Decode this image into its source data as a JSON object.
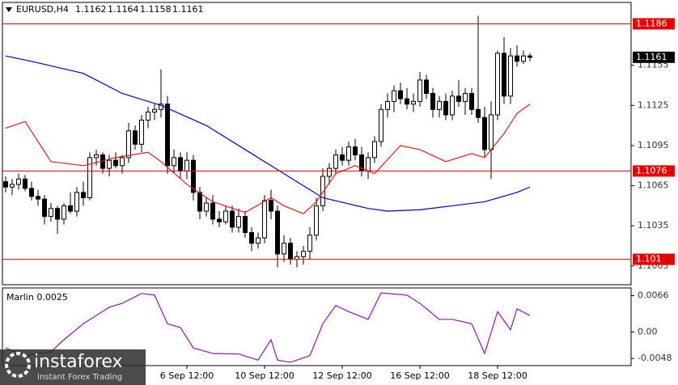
{
  "chart_data": [
    {
      "type": "candlestick",
      "symbol": "EURUSD,H4",
      "categories": [
        null,
        null,
        null,
        null,
        null,
        null,
        null,
        null,
        null,
        null,
        null,
        null,
        null,
        null,
        null,
        null,
        null,
        null,
        null,
        null,
        null,
        null,
        null,
        null,
        null,
        null,
        null,
        null,
        "6 Sep 12:00",
        null,
        null,
        null,
        null,
        null,
        null,
        null,
        null,
        null,
        null,
        null,
        "10 Sep 12:00",
        null,
        null,
        null,
        null,
        null,
        null,
        null,
        null,
        null,
        null,
        null,
        "12 Sep 12:00",
        null,
        null,
        null,
        null,
        null,
        null,
        null,
        null,
        null,
        null,
        null,
        "16 Sep 12:00",
        null,
        null,
        null,
        null,
        null,
        null,
        null,
        null,
        null,
        null,
        null,
        "18 Sep 12:00",
        null,
        null,
        null,
        null,
        null
      ],
      "open": [
        1.1068,
        1.1064,
        1.1066,
        1.107,
        1.1063,
        1.1057,
        1.1055,
        1.1042,
        1.1048,
        1.104,
        1.105,
        1.1046,
        1.106,
        1.1056,
        1.1086,
        1.1088,
        1.1078,
        1.1084,
        1.108,
        1.1086,
        1.1106,
        1.1096,
        1.1114,
        1.112,
        1.1122,
        1.1126,
        1.108,
        1.1086,
        1.1076,
        1.1084,
        1.106,
        1.1046,
        1.1052,
        1.104,
        1.1038,
        1.1046,
        1.1034,
        1.1042,
        1.103,
        1.1022,
        1.1026,
        1.1054,
        1.1046,
        1.1014,
        1.1022,
        1.101,
        1.1012,
        1.1016,
        1.1028,
        1.105,
        1.1072,
        1.1078,
        1.1088,
        1.1084,
        1.1094,
        1.1088,
        1.1076,
        1.1086,
        1.1098,
        1.1122,
        1.1128,
        1.1136,
        1.113,
        1.1126,
        1.1128,
        1.1144,
        1.1134,
        1.1122,
        1.1128,
        1.1118,
        1.1132,
        1.1128,
        1.1134,
        1.1122,
        1.1116,
        1.1092,
        1.1118,
        1.1164,
        1.1132,
        1.1162,
        1.1158,
        1.1162
      ],
      "high": [
        1.1072,
        1.107,
        1.1074,
        1.1073,
        1.1068,
        1.1062,
        1.1058,
        1.1052,
        1.105,
        1.1052,
        1.106,
        1.1064,
        1.1068,
        1.109,
        1.1092,
        1.109,
        1.1088,
        1.109,
        1.1088,
        1.1112,
        1.111,
        1.1118,
        1.1124,
        1.1126,
        1.1152,
        1.1132,
        1.1092,
        1.109,
        1.109,
        1.1088,
        1.1064,
        1.1056,
        1.1058,
        1.1046,
        1.105,
        1.105,
        1.1048,
        1.1046,
        1.1034,
        1.103,
        1.1058,
        1.1062,
        1.105,
        1.1028,
        1.1026,
        1.1016,
        1.102,
        1.1034,
        1.1056,
        1.1078,
        1.1082,
        1.1092,
        1.1094,
        1.1098,
        1.11,
        1.1094,
        1.109,
        1.1102,
        1.1126,
        1.1134,
        1.114,
        1.1142,
        1.1138,
        1.1134,
        1.115,
        1.1148,
        1.1138,
        1.1132,
        1.1134,
        1.1136,
        1.1144,
        1.1138,
        1.1138,
        1.1192,
        1.1124,
        1.1128,
        1.1166,
        1.1176,
        1.1168,
        1.117,
        1.1166,
        1.1164
      ],
      "low": [
        1.106,
        1.1058,
        1.1062,
        1.1061,
        1.1054,
        1.105,
        1.1036,
        1.1038,
        1.1029,
        1.1036,
        1.1044,
        1.1042,
        1.105,
        1.1054,
        1.108,
        1.1074,
        1.1072,
        1.1078,
        1.1074,
        1.1082,
        1.1092,
        1.109,
        1.1108,
        1.1114,
        1.1116,
        1.1074,
        1.1074,
        1.107,
        1.107,
        1.1054,
        1.104,
        1.1042,
        1.1036,
        1.1034,
        1.1036,
        1.103,
        1.103,
        1.1026,
        1.1016,
        1.1018,
        1.1022,
        1.104,
        1.1004,
        1.1008,
        1.1006,
        1.1004,
        1.1006,
        1.101,
        1.1024,
        1.1046,
        1.1066,
        1.1074,
        1.108,
        1.108,
        1.1084,
        1.1072,
        1.107,
        1.1082,
        1.1094,
        1.1116,
        1.112,
        1.1126,
        1.1122,
        1.112,
        1.1124,
        1.113,
        1.1116,
        1.1116,
        1.1114,
        1.1114,
        1.1124,
        1.1118,
        1.1118,
        1.1112,
        1.1086,
        1.107,
        1.1114,
        1.1126,
        1.1126,
        1.1154,
        1.1156,
        1.1158
      ],
      "close": [
        1.1064,
        1.1066,
        1.107,
        1.1063,
        1.1057,
        1.1055,
        1.1042,
        1.1048,
        1.104,
        1.105,
        1.1046,
        1.106,
        1.1056,
        1.1086,
        1.1088,
        1.1078,
        1.1084,
        1.108,
        1.1086,
        1.1106,
        1.1096,
        1.1114,
        1.112,
        1.1122,
        1.1126,
        1.108,
        1.1086,
        1.1076,
        1.1084,
        1.106,
        1.1046,
        1.1052,
        1.104,
        1.1038,
        1.1046,
        1.1034,
        1.1042,
        1.103,
        1.1022,
        1.1026,
        1.1054,
        1.1046,
        1.1014,
        1.1022,
        1.101,
        1.1012,
        1.1016,
        1.1028,
        1.105,
        1.1072,
        1.1078,
        1.1088,
        1.1084,
        1.1094,
        1.1088,
        1.1076,
        1.1086,
        1.1098,
        1.1122,
        1.1128,
        1.1136,
        1.113,
        1.1126,
        1.1128,
        1.1144,
        1.1134,
        1.1122,
        1.1128,
        1.1118,
        1.1132,
        1.1128,
        1.1134,
        1.1122,
        1.1116,
        1.1092,
        1.1118,
        1.1164,
        1.1132,
        1.1162,
        1.1158,
        1.1162,
        1.1161
      ],
      "series": [
        {
          "color": "#0000c8",
          "x": [
            0,
            4,
            12,
            18,
            24,
            31,
            37,
            43,
            49,
            56,
            59,
            64,
            69,
            74,
            79,
            81
          ],
          "values": [
            1.1162,
            1.1158,
            1.1149,
            1.1134,
            1.1125,
            1.111,
            1.1092,
            1.1074,
            1.1056,
            1.1048,
            1.1046,
            1.1047,
            1.105,
            1.1053,
            1.106,
            1.1064
          ]
        },
        {
          "color": "#dc1e1e",
          "x": [
            0,
            3,
            7,
            12,
            17,
            22,
            24,
            28,
            32,
            37,
            41,
            43,
            46,
            48,
            51,
            54,
            57,
            61,
            64,
            68,
            72,
            74,
            77,
            79,
            81
          ],
          "values": [
            1.1108,
            1.1113,
            1.1083,
            1.108,
            1.1086,
            1.109,
            1.1083,
            1.1066,
            1.1053,
            1.1045,
            1.1056,
            1.105,
            1.1044,
            1.1053,
            1.1074,
            1.108,
            1.1074,
            1.1095,
            1.1092,
            1.1083,
            1.1089,
            1.1086,
            1.1104,
            1.1119,
            1.1126
          ]
        }
      ],
      "levels": [
        1.1186,
        1.1076,
        1.101
      ],
      "level_color": "#e60000",
      "ylim": [
        1.0991,
        1.1202
      ],
      "yticks": [
        1.1005,
        1.1035,
        1.1065,
        1.1095,
        1.1125,
        1.1155
      ]
    },
    {
      "type": "line",
      "title": "Marlin 0.0025",
      "x": [
        0,
        3,
        7,
        9,
        12,
        16,
        18,
        21,
        23,
        25,
        27,
        29,
        32,
        36,
        39,
        41,
        42,
        44,
        47,
        49,
        51,
        53,
        56,
        58,
        62,
        64,
        67,
        69,
        72,
        74,
        76,
        78,
        79,
        81
      ],
      "values": [
        -0.0029,
        -0.0043,
        -0.0036,
        -0.0014,
        0.0015,
        0.0045,
        0.0052,
        0.007,
        0.0067,
        0.0015,
        0.0008,
        -0.0029,
        -0.0039,
        -0.004,
        -0.0051,
        -0.0014,
        -0.0051,
        -0.0055,
        -0.0043,
        0.0015,
        0.0048,
        0.0037,
        0.0023,
        0.0071,
        0.0067,
        0.0052,
        0.0023,
        0.0023,
        0.0015,
        -0.0039,
        0.0037,
        0.0004,
        0.0042,
        0.003
      ],
      "color": "#8b1aa8",
      "ylim": [
        -0.0061,
        0.008
      ],
      "yticks": [
        0.0066,
        {
          "value": 0,
          "label": "0.00"
        },
        -0.0048
      ]
    }
  ],
  "watermark": {
    "brand": "instaforex",
    "tagline": "Instant Forex Trading"
  }
}
